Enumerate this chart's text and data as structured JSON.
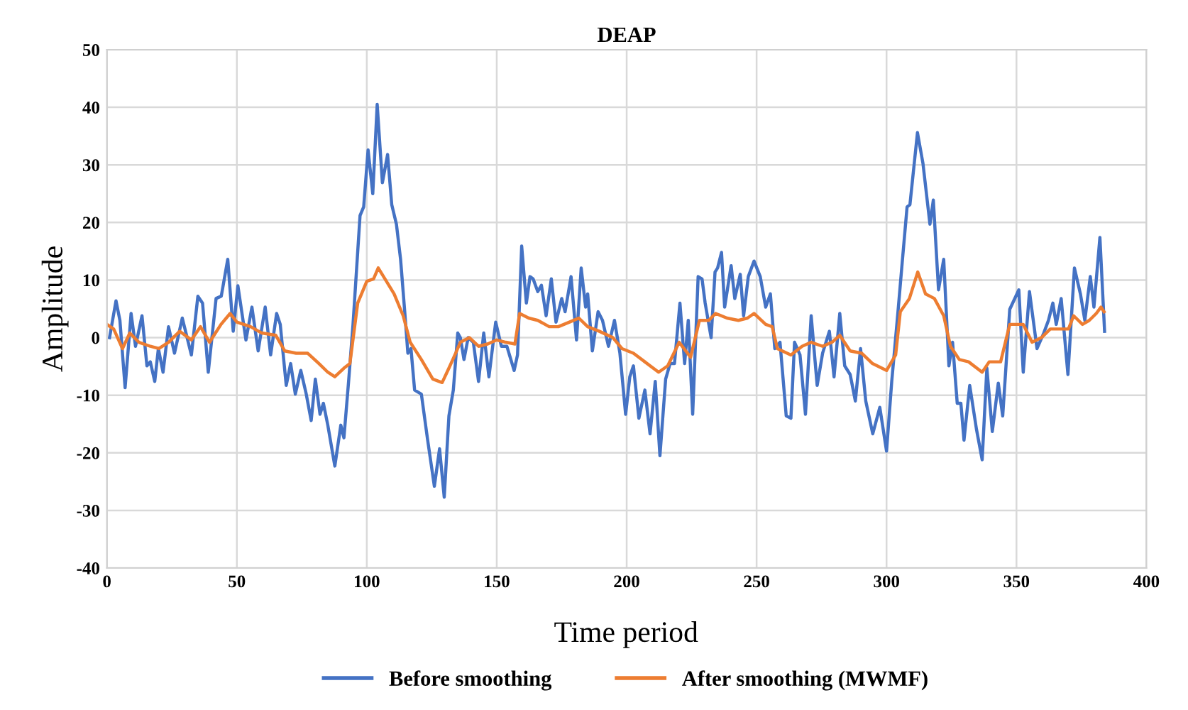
{
  "chart_data": {
    "type": "line",
    "title": "DEAP",
    "xlabel": "Time period",
    "ylabel": "Amplitude",
    "xlim": [
      0,
      400
    ],
    "xticks": [
      0,
      50,
      100,
      150,
      200,
      250,
      300,
      350,
      400
    ],
    "ylim": [
      -40,
      50
    ],
    "yticks": [
      -40,
      -30,
      -20,
      -10,
      0,
      10,
      20,
      30,
      40,
      50
    ],
    "grid": true,
    "legend": "bottom",
    "marker": "none",
    "line_style": "solid",
    "series": [
      {
        "name": "Before smoothing",
        "color": "#4472c4",
        "x": [
          1,
          3.5,
          5,
          7,
          9.3,
          11,
          13.5,
          15.4,
          16.7,
          18.4,
          19.8,
          21.6,
          23.7,
          26,
          29,
          32.5,
          35,
          36.8,
          39,
          42,
          44,
          46.5,
          48.6,
          50.4,
          53.5,
          55.8,
          58.2,
          60.9,
          63,
          65.3,
          66.7,
          69,
          70.7,
          72.5,
          74.6,
          76.7,
          78.6,
          80.2,
          82,
          83.3,
          85,
          87.7,
          90,
          91.2,
          93,
          94.7,
          97.4,
          98.8,
          100.5,
          102.3,
          104,
          106,
          108,
          109.6,
          111.4,
          113,
          114.6,
          115.8,
          117,
          118.4,
          121,
          123.3,
          126,
          128,
          129.8,
          131.6,
          133.3,
          135,
          136,
          137.4,
          139,
          141,
          143,
          145,
          147,
          149.6,
          151.8,
          153.9,
          156.7,
          158,
          159.6,
          161.4,
          162.8,
          164,
          165.8,
          167.2,
          169,
          171,
          172.8,
          175,
          176.3,
          178.6,
          180.7,
          182.5,
          184.2,
          185,
          186.8,
          189,
          190.7,
          193,
          195.3,
          197.4,
          199.6,
          201.2,
          202.6,
          204.7,
          207,
          209,
          211,
          212.8,
          215,
          216.7,
          218.4,
          220.5,
          222.3,
          223.7,
          225.4,
          227.5,
          229,
          230.2,
          232.5,
          234,
          235,
          236.5,
          237.7,
          240.2,
          241.6,
          243.7,
          245,
          246.8,
          249,
          251.4,
          253.5,
          255.3,
          257,
          259,
          261.4,
          263.2,
          264.6,
          266.7,
          268.8,
          271,
          273.3,
          275.4,
          278,
          279.8,
          282,
          283.9,
          286,
          288,
          290,
          292,
          294.7,
          297.4,
          300,
          302,
          304.4,
          306,
          307.9,
          309,
          311.9,
          314,
          316.7,
          318,
          320,
          322,
          324,
          325.4,
          327.2,
          328.6,
          329.8,
          332,
          334.6,
          336.8,
          338.6,
          340.7,
          343,
          344.7,
          347.4,
          350.9,
          352.6,
          355,
          357.9,
          360.5,
          362.3,
          364,
          365.3,
          367.2,
          369.8,
          372.3,
          374.6,
          376.3,
          378.4,
          379.8,
          382.1,
          383.9
        ],
        "values": [
          0,
          6.4,
          3,
          -8.7,
          4.2,
          -1.5,
          3.8,
          -4.9,
          -4.2,
          -7.6,
          -1.9,
          -6,
          1.9,
          -2.7,
          3.4,
          -3,
          7.2,
          6,
          -6,
          6.8,
          7.2,
          13.6,
          1.1,
          9,
          -0.4,
          5.3,
          -2.3,
          5.3,
          -3,
          4.2,
          2.3,
          -8.3,
          -4.5,
          -9.8,
          -5.7,
          -9.8,
          -14.4,
          -7.2,
          -13.3,
          -11.4,
          -15.2,
          -22.3,
          -15.2,
          -17.4,
          -7.6,
          2.3,
          21.2,
          22.7,
          32.6,
          25,
          40.5,
          26.9,
          31.8,
          23.1,
          19.7,
          13.6,
          4.5,
          -2.7,
          -1.9,
          -9.1,
          -9.8,
          -17.4,
          -25.8,
          -19.3,
          -27.7,
          -13.6,
          -9.1,
          0.8,
          0,
          -3.8,
          0,
          -0.8,
          -7.6,
          0.8,
          -6.8,
          2.7,
          -1.5,
          -1.5,
          -5.7,
          -3,
          15.9,
          6,
          10.6,
          10.2,
          8,
          9.1,
          3.8,
          10.2,
          2.7,
          6.8,
          4.5,
          10.6,
          -0.4,
          12.1,
          5.3,
          7.6,
          -2.3,
          4.5,
          3,
          -1.5,
          3,
          -2.7,
          -13.3,
          -6.8,
          -4.9,
          -14,
          -9.1,
          -16.7,
          -7.6,
          -20.5,
          -7.2,
          -4.5,
          -4.5,
          6,
          -4.5,
          3,
          -13.3,
          10.6,
          10.2,
          6,
          0,
          11.4,
          12.1,
          14.8,
          5.3,
          12.5,
          6.8,
          11,
          3.8,
          10.6,
          13.3,
          10.6,
          5.3,
          7.6,
          -1.9,
          -0.8,
          -13.6,
          -14,
          -0.8,
          -3,
          -13.3,
          3.8,
          -8.3,
          -2.7,
          1.1,
          -6.8,
          4.2,
          -4.9,
          -6.4,
          -11,
          -1.9,
          -11,
          -16.7,
          -12.1,
          -19.7,
          -7.6,
          4.5,
          12.9,
          22.7,
          23.1,
          35.6,
          30.3,
          19.7,
          23.9,
          8.3,
          13.6,
          -4.9,
          -0.8,
          -11.4,
          -11.4,
          -17.8,
          -8.3,
          -15.9,
          -21.2,
          -5.3,
          -16.3,
          -7.9,
          -13.6,
          4.9,
          8.3,
          -6,
          8,
          -1.9,
          0.8,
          3,
          6,
          2.3,
          6.8,
          -6.4,
          12.1,
          7.6,
          3,
          10.6,
          5.3,
          17.4,
          1.1
        ]
      },
      {
        "name": "After smoothing (MWMF)",
        "color": "#ed7d31",
        "x": [
          0,
          2.6,
          6,
          8.8,
          12.3,
          16.7,
          20,
          23.7,
          28,
          32.5,
          36,
          39.5,
          43.9,
          47.4,
          50,
          55.3,
          59.6,
          65,
          68.4,
          72.8,
          77.2,
          81.6,
          85,
          87.7,
          91.2,
          93.5,
          96.5,
          100,
          102.6,
          104.4,
          107,
          110.5,
          114,
          116.7,
          121,
          125.4,
          129,
          131.6,
          134.2,
          136,
          139.5,
          143,
          146.5,
          150,
          153.5,
          157,
          158.8,
          162.3,
          165.8,
          170.2,
          173.7,
          178,
          181.6,
          185,
          189.5,
          194.7,
          198.2,
          202.6,
          207,
          212.3,
          215.8,
          220.2,
          224.6,
          228,
          231.6,
          234.2,
          238.6,
          243,
          246.5,
          249,
          253.5,
          256,
          258,
          263.2,
          267.5,
          271,
          275.4,
          279,
          282,
          286,
          290.4,
          294.6,
          300,
          303.5,
          305.3,
          308.8,
          312,
          315,
          318.4,
          322,
          324.6,
          328,
          331.6,
          336.8,
          339.5,
          343.9,
          347.4,
          352.6,
          356,
          359.6,
          363,
          366.7,
          370,
          372,
          375.4,
          378,
          380.7,
          382.5,
          383.7
        ],
        "values": [
          2.3,
          1.5,
          -1.9,
          0.8,
          -0.8,
          -1.5,
          -1.9,
          -0.8,
          1.1,
          -0.4,
          1.9,
          -0.8,
          2.3,
          4.2,
          2.7,
          1.9,
          0.8,
          0.4,
          -2.3,
          -2.7,
          -2.7,
          -4.5,
          -6,
          -6.8,
          -5.3,
          -4.5,
          6,
          9.8,
          10.2,
          12.1,
          10.2,
          7.6,
          3.8,
          -0.8,
          -3.8,
          -7.2,
          -7.8,
          -5.3,
          -2.7,
          -0.8,
          0,
          -1.5,
          -1.1,
          -0.4,
          -0.8,
          -1.1,
          4.2,
          3.4,
          3,
          1.9,
          1.9,
          2.7,
          3.4,
          1.9,
          1.1,
          0,
          -1.9,
          -2.7,
          -4.2,
          -6,
          -4.9,
          -0.8,
          -3.4,
          3,
          3,
          4.2,
          3.4,
          3,
          3.4,
          4.2,
          2.3,
          1.9,
          -1.9,
          -3,
          -1.5,
          -0.8,
          -1.5,
          -0.8,
          0.4,
          -2.3,
          -2.7,
          -4.5,
          -5.7,
          -3,
          4.5,
          6.8,
          11.4,
          7.6,
          6.8,
          3.8,
          -1.5,
          -3.8,
          -4.2,
          -6,
          -4.2,
          -4.2,
          2.3,
          2.3,
          -0.8,
          0,
          1.5,
          1.5,
          1.5,
          3.8,
          2.3,
          3,
          4.2,
          5.3,
          4.5
        ]
      }
    ]
  }
}
